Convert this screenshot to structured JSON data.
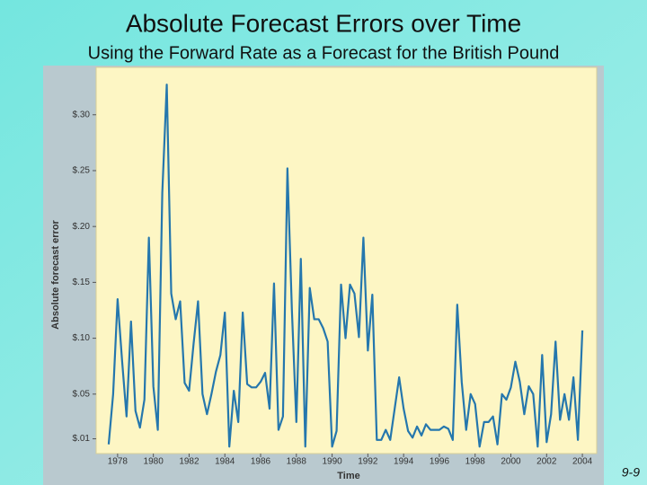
{
  "chart_data": {
    "type": "line",
    "title": "Absolute Forecast Errors over Time",
    "subtitle": "Using the Forward Rate as a Forecast for the British Pound",
    "xlabel": "Time",
    "ylabel": "Absolute forecast error",
    "color": "#2577ad",
    "x": [
      1977.5,
      1977.75,
      1978,
      1978.25,
      1978.5,
      1978.75,
      1979,
      1979.25,
      1979.5,
      1979.75,
      1980,
      1980.25,
      1980.5,
      1980.75,
      1981,
      1981.25,
      1981.5,
      1981.75,
      1982,
      1982.25,
      1982.5,
      1982.75,
      1983,
      1983.25,
      1983.5,
      1983.75,
      1984,
      1984.25,
      1984.5,
      1984.75,
      1985,
      1985.25,
      1985.5,
      1985.75,
      1986,
      1986.25,
      1986.5,
      1986.75,
      1987,
      1987.25,
      1987.5,
      1987.75,
      1988,
      1988.25,
      1988.5,
      1988.75,
      1989,
      1989.25,
      1989.5,
      1989.75,
      1990,
      1990.25,
      1990.5,
      1990.75,
      1991,
      1991.25,
      1991.5,
      1991.75,
      1992,
      1992.25,
      1992.5,
      1992.75,
      1993,
      1993.25,
      1993.5,
      1993.75,
      1994,
      1994.25,
      1994.5,
      1994.75,
      1995,
      1995.25,
      1995.5,
      1995.75,
      1996,
      1996.25,
      1996.5,
      1996.75,
      1997,
      1997.25,
      1997.5,
      1997.75,
      1998,
      1998.25,
      1998.5,
      1998.75,
      1999,
      1999.25,
      1999.5,
      1999.75,
      2000,
      2000.25,
      2000.5,
      2000.75,
      2001,
      2001.25,
      2001.5,
      2001.75,
      2002,
      2002.25,
      2002.5,
      2002.75,
      2003,
      2003.25,
      2003.5,
      2003.75,
      2004
    ],
    "values": [
      0.005,
      0.05,
      0.135,
      0.08,
      0.03,
      0.115,
      0.035,
      0.02,
      0.045,
      0.19,
      0.057,
      0.018,
      0.23,
      0.327,
      0.14,
      0.117,
      0.133,
      0.06,
      0.053,
      0.095,
      0.133,
      0.05,
      0.032,
      0.05,
      0.07,
      0.085,
      0.123,
      0.003,
      0.053,
      0.025,
      0.123,
      0.059,
      0.056,
      0.056,
      0.061,
      0.069,
      0.037,
      0.149,
      0.018,
      0.03,
      0.252,
      0.125,
      0.025,
      0.171,
      0.003,
      0.145,
      0.117,
      0.117,
      0.109,
      0.097,
      0.003,
      0.017,
      0.148,
      0.1,
      0.148,
      0.14,
      0.101,
      0.19,
      0.089,
      0.139,
      0.009,
      0.009,
      0.018,
      0.009,
      0.037,
      0.065,
      0.037,
      0.017,
      0.011,
      0.021,
      0.013,
      0.023,
      0.018,
      0.018,
      0.018,
      0.021,
      0.019,
      0.009,
      0.13,
      0.061,
      0.018,
      0.05,
      0.041,
      0.003,
      0.025,
      0.025,
      0.03,
      0.005,
      0.05,
      0.045,
      0.056,
      0.079,
      0.061,
      0.032,
      0.057,
      0.05,
      0.003,
      0.085,
      0.007,
      0.032,
      0.097,
      0.027,
      0.05,
      0.027,
      0.065,
      0.009,
      0.107
    ],
    "xlim": [
      1976.8,
      2004.8
    ],
    "xticks": [
      1978,
      1980,
      1982,
      1984,
      1986,
      1988,
      1990,
      1992,
      1994,
      1996,
      1998,
      2000,
      2002,
      2004
    ],
    "ylim": [
      0,
      0.34
    ],
    "yticks": [
      {
        "value": 0.01,
        "label": "$.01"
      },
      {
        "value": 0.05,
        "label": "$.05"
      },
      {
        "value": 0.1,
        "label": "$.10"
      },
      {
        "value": 0.15,
        "label": "$.15"
      },
      {
        "value": 0.2,
        "label": "$.20"
      },
      {
        "value": 0.25,
        "label": "$.25"
      },
      {
        "value": 0.3,
        "label": "$.30"
      }
    ]
  },
  "slide_number": "9-9"
}
